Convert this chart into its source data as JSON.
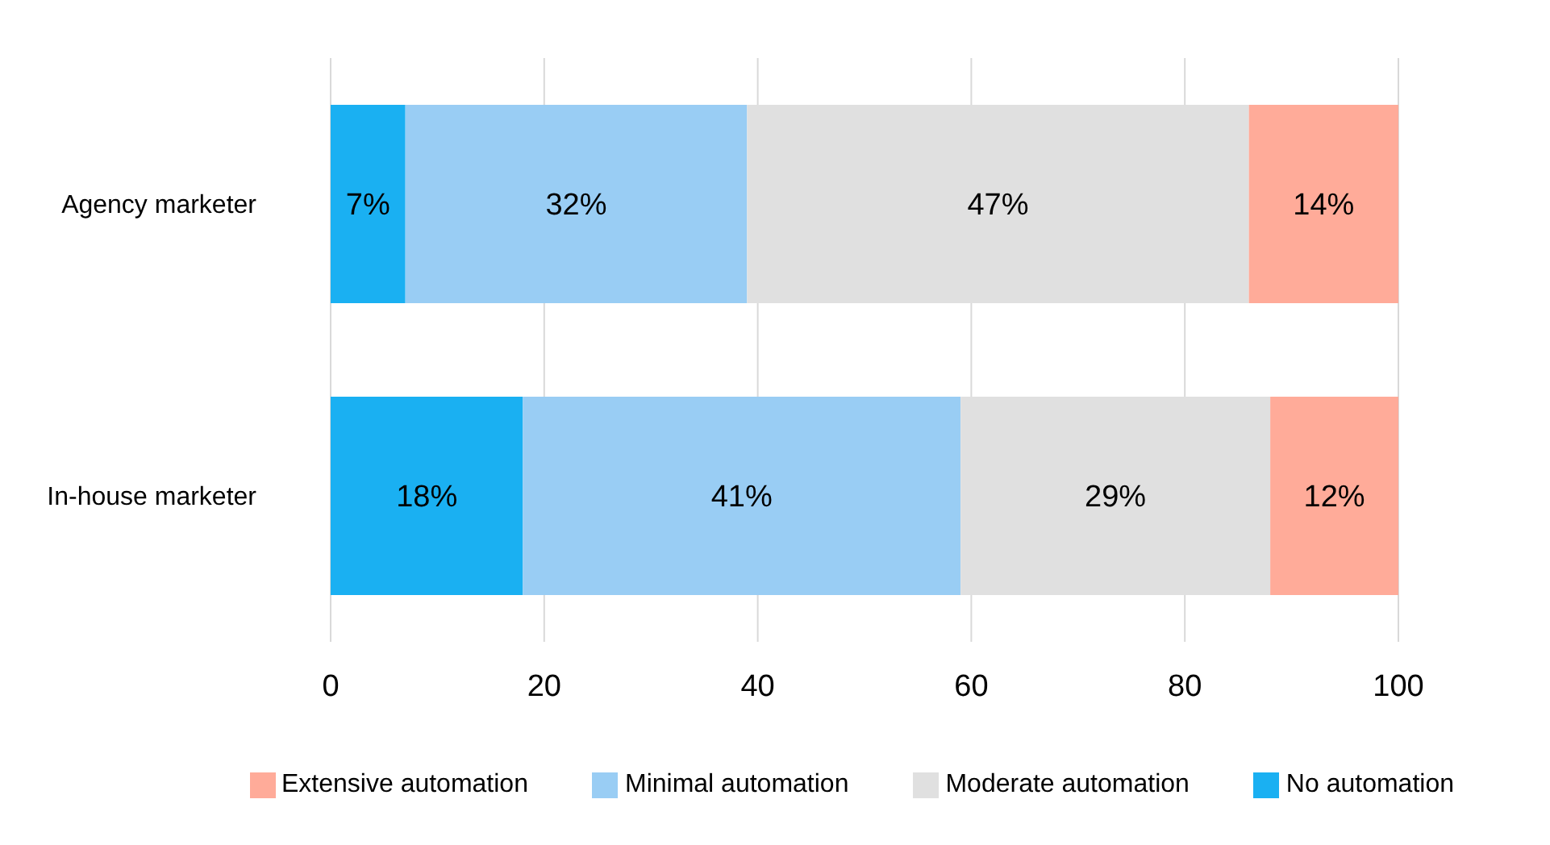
{
  "chart_data": {
    "type": "bar",
    "orientation": "horizontal",
    "stacked": true,
    "categories": [
      "Agency marketer",
      "In-house marketer"
    ],
    "series": [
      {
        "name": "No automation",
        "color": "#1ab0f2",
        "values": [
          7,
          18
        ],
        "value_labels": [
          "7%",
          "18%"
        ]
      },
      {
        "name": "Minimal automation",
        "color": "#99cdf4",
        "values": [
          32,
          41
        ],
        "value_labels": [
          "32%",
          "41%"
        ]
      },
      {
        "name": "Moderate automation",
        "color": "#e0e0e0",
        "values": [
          47,
          29
        ],
        "value_labels": [
          "47%",
          "29%"
        ]
      },
      {
        "name": "Extensive automation",
        "color": "#ffab99",
        "values": [
          14,
          12
        ],
        "value_labels": [
          "14%",
          "12%"
        ]
      }
    ],
    "xlim": [
      0,
      100
    ],
    "xticks": [
      0,
      20,
      40,
      60,
      80,
      100
    ],
    "grid": "x",
    "legend": "bottom"
  }
}
